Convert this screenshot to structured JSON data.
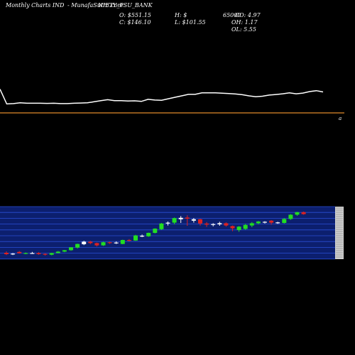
{
  "header": {
    "left": "Monthly Charts IND",
    "middle": "- MunafaSutra.com",
    "symbol": "NIFTY_PSU_BANK"
  },
  "ohlc": {
    "o": "O: $551.15",
    "c": "C: $146.10",
    "h": "H: $",
    "l": "L: $101.55",
    "vol": "65000",
    "chg": "CO: 4.97",
    "oh": "OH: 1.17",
    "ol": "OL: 5.55"
  },
  "colors": {
    "background": "#000000",
    "price_line": "#ffffff",
    "level_line": "#e08a2a",
    "band": "#0c1f6e",
    "band_line": "#2a4fd6",
    "up": "#22dd22",
    "down": "#dd2222",
    "neutral": "#ffffff"
  },
  "chart_data": [
    {
      "type": "line",
      "series": [
        {
          "values": [
            0.9,
            0.1,
            0.12,
            0.16,
            0.14,
            0.14,
            0.14,
            0.13,
            0.14,
            0.12,
            0.12,
            0.14,
            0.15,
            0.16,
            0.22,
            0.28,
            0.33,
            0.28,
            0.28,
            0.26,
            0.27,
            0.24,
            0.35,
            0.31,
            0.3,
            0.38,
            0.46,
            0.54,
            0.62,
            0.62,
            0.7,
            0.7,
            0.7,
            0.68,
            0.66,
            0.64,
            0.6,
            0.54,
            0.49,
            0.52,
            0.58,
            0.61,
            0.65,
            0.7,
            0.65,
            0.69,
            0.77,
            0.82,
            0.75
          ]
        }
      ],
      "level_line": 0.0,
      "marker": "a"
    },
    {
      "type": "candlestick",
      "candles": [
        {
          "o": 2.0,
          "h": 2.5,
          "l": 1.2,
          "c": 1.5,
          "dir": "down"
        },
        {
          "o": 1.6,
          "h": 1.9,
          "l": 1.2,
          "c": 1.7,
          "dir": "neutral"
        },
        {
          "o": 2.3,
          "h": 2.6,
          "l": 1.7,
          "c": 1.8,
          "dir": "down"
        },
        {
          "o": 1.7,
          "h": 2.1,
          "l": 1.5,
          "c": 1.9,
          "dir": "up"
        },
        {
          "o": 1.9,
          "h": 2.3,
          "l": 1.6,
          "c": 1.8,
          "dir": "neutral"
        },
        {
          "o": 1.9,
          "h": 2.2,
          "l": 1.3,
          "c": 1.5,
          "dir": "down"
        },
        {
          "o": 1.4,
          "h": 1.8,
          "l": 1.0,
          "c": 1.6,
          "dir": "down"
        },
        {
          "o": 1.3,
          "h": 2.0,
          "l": 1.1,
          "c": 1.9,
          "dir": "up"
        },
        {
          "o": 1.9,
          "h": 2.6,
          "l": 1.8,
          "c": 2.4,
          "dir": "up"
        },
        {
          "o": 2.4,
          "h": 3.0,
          "l": 2.2,
          "c": 2.9,
          "dir": "up"
        },
        {
          "o": 2.9,
          "h": 4.0,
          "l": 2.7,
          "c": 3.9,
          "dir": "up"
        },
        {
          "o": 3.8,
          "h": 5.2,
          "l": 3.5,
          "c": 5.1,
          "dir": "up"
        },
        {
          "o": 5.0,
          "h": 6.2,
          "l": 4.7,
          "c": 5.9,
          "dir": "neutral"
        },
        {
          "o": 5.9,
          "h": 6.2,
          "l": 5.0,
          "c": 5.4,
          "dir": "down"
        },
        {
          "o": 5.4,
          "h": 5.6,
          "l": 4.2,
          "c": 4.6,
          "dir": "down"
        },
        {
          "o": 4.6,
          "h": 5.9,
          "l": 4.4,
          "c": 5.7,
          "dir": "up"
        },
        {
          "o": 5.7,
          "h": 5.9,
          "l": 5.1,
          "c": 5.4,
          "dir": "down"
        },
        {
          "o": 5.4,
          "h": 6.0,
          "l": 5.1,
          "c": 5.6,
          "dir": "neutral"
        },
        {
          "o": 5.1,
          "h": 6.6,
          "l": 5.0,
          "c": 6.5,
          "dir": "up"
        },
        {
          "o": 6.5,
          "h": 6.8,
          "l": 6.0,
          "c": 6.3,
          "dir": "down"
        },
        {
          "o": 6.3,
          "h": 8.3,
          "l": 6.2,
          "c": 8.1,
          "dir": "up"
        },
        {
          "o": 8.0,
          "h": 8.4,
          "l": 7.5,
          "c": 7.8,
          "dir": "neutral"
        },
        {
          "o": 7.8,
          "h": 9.1,
          "l": 7.6,
          "c": 9.0,
          "dir": "up"
        },
        {
          "o": 9.0,
          "h": 10.6,
          "l": 8.8,
          "c": 10.5,
          "dir": "up"
        },
        {
          "o": 10.3,
          "h": 12.5,
          "l": 10.0,
          "c": 12.3,
          "dir": "up"
        },
        {
          "o": 12.3,
          "h": 13.0,
          "l": 11.6,
          "c": 12.6,
          "dir": "neutral"
        },
        {
          "o": 12.6,
          "h": 14.4,
          "l": 12.0,
          "c": 14.2,
          "dir": "up"
        },
        {
          "o": 14.3,
          "h": 14.9,
          "l": 12.5,
          "c": 13.8,
          "dir": "neutral"
        },
        {
          "o": 14.4,
          "h": 15.2,
          "l": 11.5,
          "c": 14.0,
          "dir": "down"
        },
        {
          "o": 13.8,
          "h": 14.2,
          "l": 12.6,
          "c": 13.3,
          "dir": "neutral"
        },
        {
          "o": 13.8,
          "h": 14.0,
          "l": 11.6,
          "c": 12.3,
          "dir": "down"
        },
        {
          "o": 12.3,
          "h": 12.8,
          "l": 11.1,
          "c": 11.9,
          "dir": "down"
        },
        {
          "o": 11.9,
          "h": 12.4,
          "l": 11.3,
          "c": 12.1,
          "dir": "neutral"
        },
        {
          "o": 12.4,
          "h": 12.9,
          "l": 11.5,
          "c": 12.0,
          "dir": "neutral"
        },
        {
          "o": 12.4,
          "h": 12.7,
          "l": 11.2,
          "c": 11.6,
          "dir": "down"
        },
        {
          "o": 11.4,
          "h": 11.6,
          "l": 9.6,
          "c": 10.6,
          "dir": "down"
        },
        {
          "o": 10.0,
          "h": 11.4,
          "l": 9.4,
          "c": 11.2,
          "dir": "up"
        },
        {
          "o": 10.4,
          "h": 12.2,
          "l": 10.1,
          "c": 11.8,
          "dir": "up"
        },
        {
          "o": 11.6,
          "h": 12.8,
          "l": 11.0,
          "c": 12.4,
          "dir": "up"
        },
        {
          "o": 12.4,
          "h": 13.2,
          "l": 12.0,
          "c": 13.0,
          "dir": "up"
        },
        {
          "o": 12.8,
          "h": 13.1,
          "l": 12.3,
          "c": 12.9,
          "dir": "neutral"
        },
        {
          "o": 13.3,
          "h": 13.5,
          "l": 11.9,
          "c": 12.6,
          "dir": "down"
        },
        {
          "o": 12.7,
          "h": 12.9,
          "l": 12.2,
          "c": 12.6,
          "dir": "neutral"
        },
        {
          "o": 12.5,
          "h": 14.2,
          "l": 12.3,
          "c": 13.9,
          "dir": "up"
        },
        {
          "o": 13.9,
          "h": 15.6,
          "l": 13.6,
          "c": 15.4,
          "dir": "up"
        },
        {
          "o": 15.4,
          "h": 16.4,
          "l": 15.0,
          "c": 16.3,
          "dir": "up"
        },
        {
          "o": 16.3,
          "h": 16.5,
          "l": 15.4,
          "c": 15.6,
          "dir": "down"
        }
      ]
    }
  ]
}
